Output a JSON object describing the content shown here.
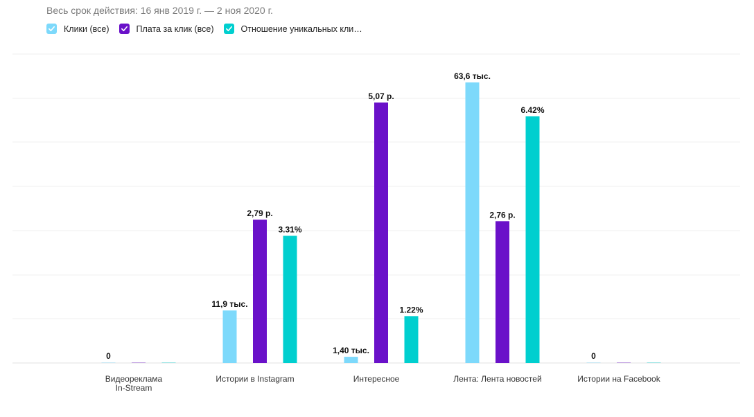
{
  "subtitle": "Весь срок действия: 16 янв 2019 г. — 2 ноя 2020 г.",
  "legend": [
    {
      "label": "Клики (все)",
      "color": "#7dd9fb",
      "icon": "check-icon"
    },
    {
      "label": "Плата за клик (все)",
      "color": "#6a11c9",
      "icon": "check-icon"
    },
    {
      "label": "Отношение уникальных кли…",
      "color": "#00cfcf",
      "icon": "check-icon"
    }
  ],
  "chart_data": {
    "type": "bar",
    "categories": [
      [
        "Видеореклама",
        "In-Stream"
      ],
      [
        "Истории в Instagram"
      ],
      [
        "Интересное"
      ],
      [
        "Лента: Лента новостей"
      ],
      [
        "Истории на Facebook"
      ]
    ],
    "series": [
      {
        "name": "Клики (все)",
        "color": "#7dd9fb",
        "values": [
          0,
          11900,
          1400,
          63600,
          0
        ],
        "labels": [
          "0",
          "11,9 тыс.",
          "1,40 тыс.",
          "63,6 тыс.",
          "0"
        ],
        "max": 63600
      },
      {
        "name": "Плата за клик (все)",
        "color": "#6a11c9",
        "values": [
          0,
          2.79,
          5.07,
          2.76,
          0
        ],
        "labels": [
          "",
          "2,79 р.",
          "5,07 р.",
          "2,76 р.",
          ""
        ],
        "max": 5.07
      },
      {
        "name": "Отношение уникальных кли…",
        "color": "#00cfcf",
        "values": [
          0,
          3.31,
          1.22,
          6.42,
          0
        ],
        "labels": [
          "",
          "3.31%",
          "1.22%",
          "6.42%",
          ""
        ],
        "max": 6.42
      }
    ],
    "grid": true,
    "legend_position": "top-left"
  }
}
